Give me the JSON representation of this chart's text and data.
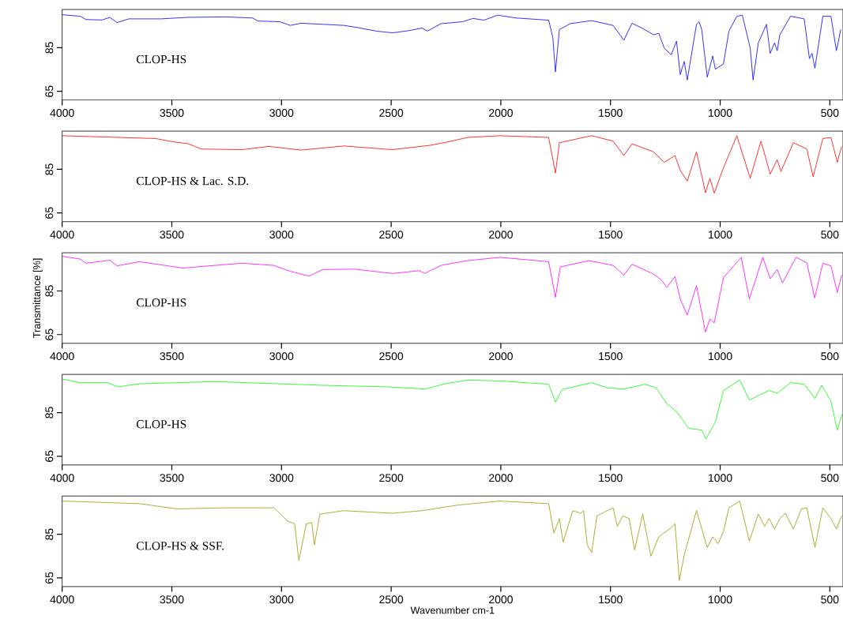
{
  "chart_data": [
    {
      "type": "line",
      "color": "#0000ff",
      "annotations": [
        "CLOP-HS"
      ],
      "xlim": [
        4000,
        440
      ],
      "xticks": [
        4000,
        3500,
        3000,
        2500,
        2000,
        1500,
        1000,
        500
      ],
      "ylim": [
        61,
        102.5
      ],
      "yticks": [
        65,
        85
      ],
      "x": [
        4000,
        3917,
        3892,
        3818,
        3782,
        3750,
        3696,
        3549,
        3426,
        3254,
        3132,
        3107,
        3009,
        2960,
        2911,
        2715,
        2641,
        2568,
        2494,
        2420,
        2359,
        2335,
        2273,
        2175,
        2126,
        2077,
        2015,
        1930,
        1782,
        1763,
        1751,
        1733,
        1684,
        1586,
        1488,
        1439,
        1402,
        1353,
        1304,
        1280,
        1255,
        1223,
        1199,
        1182,
        1164,
        1150,
        1108,
        1096,
        1084,
        1059,
        1034,
        1022,
        985,
        960,
        924,
        899,
        863,
        850,
        826,
        789,
        772,
        752,
        740,
        728,
        679,
        617,
        593,
        581,
        568,
        532,
        495,
        470,
        450
      ],
      "values": [
        100.1,
        99.4,
        97.9,
        97.7,
        98.9,
        96.5,
        98.2,
        98.2,
        98.9,
        99.1,
        98.6,
        97.2,
        96.9,
        95.2,
        96.2,
        95.2,
        94.0,
        92.6,
        91.8,
        92.8,
        94.0,
        92.6,
        96.0,
        96.9,
        98.4,
        97.6,
        99.9,
        98.6,
        97.6,
        89.7,
        73.9,
        93.3,
        96.0,
        97.4,
        95.2,
        88.4,
        96.2,
        93.8,
        90.9,
        91.6,
        84.8,
        81.7,
        88.0,
        72.7,
        78.7,
        70.2,
        95.7,
        96.9,
        93.3,
        71.5,
        81.2,
        75.1,
        77.5,
        92.6,
        99.4,
        99.9,
        84.8,
        70.2,
        87.2,
        95.7,
        82.4,
        87.2,
        83.6,
        90.9,
        99.4,
        98.2,
        80.0,
        82.4,
        75.6,
        99.4,
        99.4,
        83.6,
        93.3
      ]
    },
    {
      "type": "line",
      "color": "#ff0000",
      "annotations": [
        "CLOP-HS & Lac. S.D."
      ],
      "xlim": [
        4000,
        440
      ],
      "xticks": [
        4000,
        3500,
        3000,
        2500,
        2000,
        1500,
        1000,
        500
      ],
      "ylim": [
        61,
        102.5
      ],
      "yticks": [
        65,
        85
      ],
      "x": [
        4000,
        3573,
        3500,
        3426,
        3365,
        3181,
        3058,
        2911,
        2715,
        2494,
        2322,
        2249,
        2151,
        2003,
        1782,
        1751,
        1733,
        1586,
        1488,
        1439,
        1402,
        1304,
        1255,
        1206,
        1182,
        1150,
        1108,
        1067,
        1047,
        1027,
        985,
        924,
        863,
        814,
        772,
        740,
        723,
        666,
        605,
        576,
        532,
        495,
        466,
        446
      ],
      "values": [
        100.4,
        99.1,
        97.7,
        96.7,
        94.3,
        94.0,
        95.5,
        93.8,
        95.7,
        94.0,
        96.0,
        97.4,
        99.6,
        100.4,
        99.6,
        83.3,
        97.2,
        100.4,
        97.9,
        91.3,
        96.7,
        93.0,
        88.2,
        91.3,
        84.5,
        79.6,
        93.0,
        74.3,
        80.9,
        74.1,
        85.7,
        100.4,
        80.9,
        97.9,
        82.8,
        89.4,
        84.0,
        97.2,
        94.3,
        81.6,
        99.1,
        99.6,
        88.2,
        95.5
      ]
    },
    {
      "type": "line",
      "color": "#ff00ff",
      "annotations": [
        "CLOP-HS"
      ],
      "ylabel": "Transmittance [%]",
      "xlim": [
        4000,
        440
      ],
      "xticks": [
        4000,
        3500,
        3000,
        2500,
        2000,
        1500,
        1000,
        500
      ],
      "ylim": [
        61,
        102.5
      ],
      "yticks": [
        65,
        85
      ],
      "x": [
        4000,
        3917,
        3892,
        3782,
        3750,
        3647,
        3451,
        3181,
        3034,
        2960,
        2874,
        2813,
        2666,
        2494,
        2371,
        2347,
        2273,
        2151,
        2003,
        1782,
        1751,
        1729,
        1598,
        1488,
        1439,
        1402,
        1304,
        1267,
        1243,
        1206,
        1182,
        1150,
        1108,
        1067,
        1047,
        1027,
        985,
        904,
        867,
        806,
        772,
        740,
        716,
        654,
        605,
        569,
        532,
        495,
        466,
        446
      ],
      "values": [
        100.9,
        99.6,
        97.7,
        99.1,
        96.5,
        98.4,
        95.5,
        97.7,
        96.7,
        94.0,
        91.8,
        94.8,
        95.0,
        93.0,
        94.3,
        93.0,
        96.7,
        98.9,
        100.4,
        98.4,
        82.1,
        96.0,
        98.9,
        96.7,
        92.3,
        97.2,
        92.8,
        89.9,
        86.7,
        91.6,
        81.3,
        74.0,
        87.4,
        66.2,
        72.1,
        70.4,
        91.1,
        100.4,
        81.3,
        100.4,
        90.6,
        94.8,
        88.7,
        100.4,
        97.9,
        81.8,
        97.7,
        96.5,
        84.3,
        92.3
      ]
    },
    {
      "type": "line",
      "color": "#00ff00",
      "annotations": [
        "CLOP-HS"
      ],
      "xlim": [
        4000,
        440
      ],
      "xticks": [
        4000,
        3500,
        3000,
        2500,
        2000,
        1500,
        1000,
        500
      ],
      "ylim": [
        61,
        102.5
      ],
      "yticks": [
        65,
        85
      ],
      "x": [
        4000,
        3917,
        3794,
        3745,
        3647,
        3303,
        2813,
        2519,
        2347,
        2249,
        2151,
        2003,
        1782,
        1751,
        1721,
        1586,
        1513,
        1439,
        1341,
        1292,
        1243,
        1199,
        1164,
        1145,
        1084,
        1065,
        1022,
        985,
        911,
        867,
        777,
        740,
        679,
        617,
        568,
        537,
        495,
        466,
        444
      ],
      "values": [
        100.4,
        98.7,
        98.7,
        96.8,
        98.2,
        99.2,
        97.5,
        96.8,
        95.8,
        98.3,
        99.9,
        99.5,
        98.0,
        89.8,
        95.6,
        98.7,
        96.3,
        95.8,
        98.0,
        96.3,
        89.1,
        85.5,
        80.7,
        77.8,
        77.0,
        72.9,
        80.7,
        95.1,
        99.9,
        90.8,
        95.1,
        93.9,
        98.7,
        98.0,
        91.5,
        97.5,
        90.3,
        77.0,
        84.3
      ]
    },
    {
      "type": "line",
      "color": "#999900",
      "annotations": [
        "CLOP-HS & SSF."
      ],
      "xlabel": "Wavenumber cm-1",
      "xlim": [
        4000,
        440
      ],
      "xticks": [
        4000,
        3500,
        3000,
        2500,
        2000,
        1500,
        1000,
        500
      ],
      "ylim": [
        61,
        102.5
      ],
      "yticks": [
        65,
        85
      ],
      "x": [
        4000,
        3647,
        3475,
        3254,
        3034,
        2972,
        2940,
        2921,
        2887,
        2862,
        2850,
        2825,
        2715,
        2494,
        2359,
        2200,
        2003,
        1782,
        1758,
        1733,
        1716,
        1672,
        1635,
        1623,
        1606,
        1586,
        1562,
        1488,
        1469,
        1444,
        1415,
        1390,
        1353,
        1316,
        1280,
        1231,
        1206,
        1186,
        1164,
        1108,
        1059,
        1034,
        1010,
        985,
        960,
        911,
        867,
        826,
        797,
        777,
        752,
        728,
        703,
        666,
        630,
        605,
        568,
        532,
        495,
        470,
        446
      ],
      "values": [
        100.2,
        99.0,
        96.6,
        97.1,
        97.1,
        91.0,
        89.8,
        72.9,
        89.8,
        90.3,
        80.2,
        94.2,
        95.8,
        94.6,
        95.8,
        98.3,
        100.2,
        99.0,
        85.5,
        92.2,
        81.4,
        95.8,
        94.6,
        95.8,
        80.2,
        76.6,
        93.4,
        97.1,
        88.6,
        93.4,
        92.2,
        77.8,
        94.2,
        74.9,
        83.8,
        87.4,
        89.8,
        63.8,
        75.4,
        95.8,
        78.9,
        83.8,
        80.7,
        86.2,
        97.1,
        100.2,
        81.9,
        94.2,
        88.6,
        92.2,
        87.4,
        92.2,
        94.6,
        87.4,
        96.6,
        97.1,
        79.0,
        97.1,
        92.2,
        87.4,
        93.4
      ]
    }
  ]
}
